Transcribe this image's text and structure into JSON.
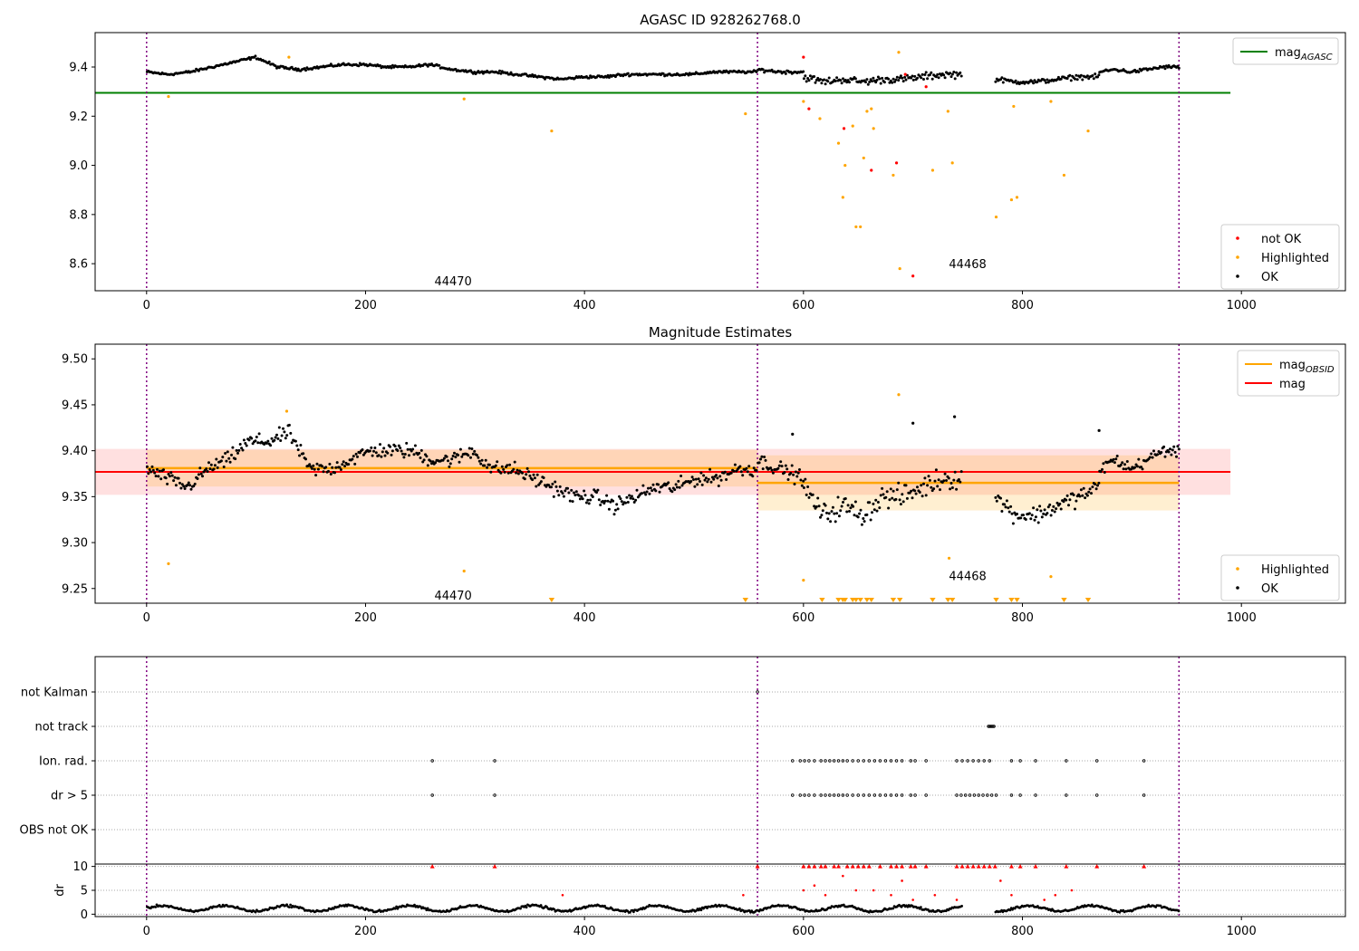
{
  "figure": {
    "title": "AGASC ID 928262768.0",
    "x_ticks": [
      "0",
      "200",
      "400",
      "600",
      "800",
      "1000"
    ]
  },
  "chart_data": [
    {
      "type": "scatter",
      "title": "AGASC ID 928262768.0",
      "xlim": [
        -47,
        1095
      ],
      "ylim": [
        8.49,
        9.54
      ],
      "y_ticks": [
        "8.6",
        "8.8",
        "9.0",
        "9.2",
        "9.4"
      ],
      "mag_agasc": 9.295,
      "obsid_boundaries": [
        0,
        558,
        943
      ],
      "obsid_labels": [
        {
          "text": "44470",
          "x": 280,
          "y": 8.53
        },
        {
          "text": "44468",
          "x": 750,
          "y": 8.6
        }
      ],
      "series": [
        {
          "name": "OK",
          "color": "#000000",
          "segments": [
            {
              "x0": 0,
              "x1": 558,
              "wave": [
                9.38,
                9.37,
                9.38,
                9.4,
                9.42,
                9.44,
                9.4,
                9.39,
                9.4,
                9.41,
                9.41,
                9.4,
                9.4,
                9.41,
                9.39,
                9.38,
                9.38,
                9.37,
                9.36,
                9.35,
                9.36,
                9.36,
                9.37,
                9.37,
                9.37,
                9.37,
                9.38,
                9.38,
                9.38
              ],
              "spread": 0.008
            },
            {
              "x0": 558,
              "x1": 600,
              "wave": [
                9.39,
                9.38,
                9.38
              ],
              "spread": 0.01
            },
            {
              "x0": 600,
              "x1": 745,
              "wave": [
                9.36,
                9.34,
                9.35,
                9.34,
                9.35,
                9.35,
                9.36,
                9.37,
                9.37
              ],
              "spread": 0.022
            },
            {
              "x0": 775,
              "x1": 870,
              "wave": [
                9.35,
                9.34,
                9.34,
                9.35,
                9.36,
                9.36
              ],
              "spread": 0.014
            },
            {
              "x0": 870,
              "x1": 943,
              "wave": [
                9.38,
                9.39,
                9.38,
                9.39,
                9.4,
                9.4
              ],
              "spread": 0.01
            }
          ]
        },
        {
          "name": "Highlighted",
          "color": "#ffa500",
          "points": [
            [
              20,
              9.28
            ],
            [
              290,
              9.27
            ],
            [
              370,
              9.14
            ],
            [
              130,
              9.44
            ],
            [
              547,
              9.21
            ],
            [
              600,
              9.26
            ],
            [
              615,
              9.19
            ],
            [
              632,
              9.09
            ],
            [
              636,
              8.87
            ],
            [
              638,
              9.0
            ],
            [
              645,
              9.16
            ],
            [
              648,
              8.75
            ],
            [
              652,
              8.75
            ],
            [
              655,
              9.03
            ],
            [
              658,
              9.22
            ],
            [
              662,
              9.23
            ],
            [
              664,
              9.15
            ],
            [
              682,
              8.96
            ],
            [
              687,
              9.46
            ],
            [
              688,
              8.58
            ],
            [
              718,
              8.98
            ],
            [
              732,
              9.22
            ],
            [
              736,
              9.01
            ],
            [
              776,
              8.79
            ],
            [
              790,
              8.86
            ],
            [
              795,
              8.87
            ],
            [
              792,
              9.24
            ],
            [
              826,
              9.26
            ],
            [
              838,
              8.96
            ],
            [
              860,
              9.14
            ]
          ]
        },
        {
          "name": "not OK",
          "color": "#ff0000",
          "points": [
            [
              600,
              9.44
            ],
            [
              605,
              9.23
            ],
            [
              637,
              9.15
            ],
            [
              662,
              8.98
            ],
            [
              685,
              9.01
            ],
            [
              700,
              8.55
            ],
            [
              712,
              9.32
            ],
            [
              693,
              9.37
            ]
          ]
        }
      ]
    },
    {
      "type": "scatter",
      "title": "Magnitude Estimates",
      "xlim": [
        -47,
        1095
      ],
      "ylim": [
        9.234,
        9.516
      ],
      "y_ticks": [
        "9.25",
        "9.30",
        "9.35",
        "9.40",
        "9.45",
        "9.50"
      ],
      "mag": 9.377,
      "mag_band": [
        9.352,
        9.402
      ],
      "mag_obsid": [
        {
          "x0": 0,
          "x1": 558,
          "value": 9.381,
          "band": [
            9.361,
            9.401
          ]
        },
        {
          "x0": 558,
          "x1": 943,
          "value": 9.365,
          "band": [
            9.335,
            9.395
          ]
        }
      ],
      "obsid_boundaries": [
        0,
        558,
        943
      ],
      "obsid_labels": [
        {
          "text": "44470",
          "x": 280,
          "y": 9.243
        },
        {
          "text": "44468",
          "x": 750,
          "y": 9.264
        }
      ],
      "series": [
        {
          "name": "OK",
          "color": "#000000",
          "segments": [
            {
              "x0": 0,
              "x1": 558,
              "wave": [
                9.38,
                9.37,
                9.36,
                9.38,
                9.39,
                9.41,
                9.41,
                9.42,
                9.38,
                9.38,
                9.39,
                9.4,
                9.4,
                9.4,
                9.39,
                9.39,
                9.4,
                9.38,
                9.38,
                9.37,
                9.36,
                9.35,
                9.35,
                9.34,
                9.35,
                9.36,
                9.36,
                9.37,
                9.37,
                9.38,
                9.38
              ],
              "spread": 0.012
            },
            {
              "x0": 558,
              "x1": 600,
              "wave": [
                9.39,
                9.38,
                9.37
              ],
              "spread": 0.012
            },
            {
              "x0": 600,
              "x1": 745,
              "wave": [
                9.36,
                9.33,
                9.34,
                9.33,
                9.35,
                9.35,
                9.36,
                9.37,
                9.37
              ],
              "spread": 0.018
            },
            {
              "x0": 775,
              "x1": 870,
              "wave": [
                9.35,
                9.33,
                9.33,
                9.34,
                9.35,
                9.36
              ],
              "spread": 0.014
            },
            {
              "x0": 870,
              "x1": 943,
              "wave": [
                9.38,
                9.39,
                9.38,
                9.39,
                9.4,
                9.4
              ],
              "spread": 0.01
            }
          ]
        },
        {
          "name": "Highlighted",
          "color": "#ffa500",
          "points": [
            [
              20,
              9.277
            ],
            [
              290,
              9.269
            ],
            [
              128,
              9.443
            ],
            [
              600,
              9.259
            ],
            [
              687,
              9.461
            ],
            [
              733,
              9.283
            ],
            [
              826,
              9.263
            ]
          ]
        },
        {
          "name": "Highlighted (below range)",
          "color": "#ffa500",
          "marker": "triangle-down",
          "points": [
            [
              370,
              9.234
            ],
            [
              547,
              9.234
            ],
            [
              617,
              9.234
            ],
            [
              632,
              9.234
            ],
            [
              636,
              9.234
            ],
            [
              638,
              9.234
            ],
            [
              645,
              9.234
            ],
            [
              648,
              9.234
            ],
            [
              652,
              9.234
            ],
            [
              658,
              9.234
            ],
            [
              662,
              9.234
            ],
            [
              682,
              9.234
            ],
            [
              688,
              9.234
            ],
            [
              718,
              9.234
            ],
            [
              732,
              9.234
            ],
            [
              736,
              9.234
            ],
            [
              776,
              9.234
            ],
            [
              790,
              9.234
            ],
            [
              795,
              9.234
            ],
            [
              838,
              9.234
            ],
            [
              860,
              9.234
            ]
          ]
        }
      ],
      "extra_ok_points": [
        [
          700,
          9.43
        ],
        [
          738,
          9.437
        ],
        [
          590,
          9.418
        ],
        [
          870,
          9.422
        ]
      ]
    },
    {
      "type": "scatter",
      "title": "",
      "xlim": [
        -47,
        1095
      ],
      "categories": [
        "not Kalman",
        "not track",
        "Ion. rad.",
        "dr > 5",
        "OBS not OK"
      ],
      "flags": {
        "not Kalman": [
          558
        ],
        "not track": [
          769,
          770,
          771,
          772,
          773,
          774
        ],
        "Ion. rad.": [
          261,
          318,
          590,
          597,
          601,
          605,
          610,
          616,
          620,
          624,
          628,
          632,
          636,
          640,
          645,
          650,
          655,
          660,
          665,
          670,
          675,
          680,
          685,
          690,
          698,
          702,
          712,
          740,
          745,
          750,
          755,
          760,
          765,
          770,
          790,
          798,
          812,
          840,
          868,
          911
        ],
        "dr > 5": [
          261,
          318,
          590,
          597,
          601,
          605,
          610,
          616,
          620,
          624,
          628,
          632,
          636,
          640,
          645,
          650,
          655,
          660,
          665,
          670,
          675,
          680,
          685,
          690,
          698,
          702,
          712,
          740,
          744,
          748,
          752,
          756,
          760,
          764,
          768,
          772,
          776,
          790,
          798,
          812,
          840,
          868,
          911
        ],
        "OBS not OK": []
      }
    },
    {
      "type": "scatter",
      "title": "",
      "ylabel": "dr",
      "xlim": [
        -47,
        1095
      ],
      "ylim": [
        -0.5,
        10.5
      ],
      "y_ticks": [
        "0",
        "5",
        "10"
      ],
      "clip_value": 10,
      "series": [
        {
          "name": "dr",
          "color": "#000000",
          "baseline": 1.2,
          "spread": 0.6
        },
        {
          "name": "dr large",
          "color": "#ff0000",
          "points": [
            [
              261,
              10
            ],
            [
              318,
              10
            ],
            [
              380,
              4
            ],
            [
              545,
              4
            ],
            [
              558,
              10
            ],
            [
              600,
              10
            ],
            [
              605,
              10
            ],
            [
              610,
              10
            ],
            [
              616,
              10
            ],
            [
              620,
              10
            ],
            [
              628,
              10
            ],
            [
              632,
              10
            ],
            [
              640,
              10
            ],
            [
              645,
              10
            ],
            [
              650,
              10
            ],
            [
              655,
              10
            ],
            [
              660,
              10
            ],
            [
              670,
              10
            ],
            [
              680,
              10
            ],
            [
              685,
              10
            ],
            [
              690,
              10
            ],
            [
              698,
              10
            ],
            [
              702,
              10
            ],
            [
              712,
              10
            ],
            [
              740,
              10
            ],
            [
              745,
              10
            ],
            [
              750,
              10
            ],
            [
              755,
              10
            ],
            [
              760,
              10
            ],
            [
              765,
              10
            ],
            [
              770,
              10
            ],
            [
              775,
              10
            ],
            [
              790,
              10
            ],
            [
              798,
              10
            ],
            [
              812,
              10
            ],
            [
              840,
              10
            ],
            [
              868,
              10
            ],
            [
              911,
              10
            ],
            [
              600,
              5
            ],
            [
              610,
              6
            ],
            [
              620,
              4
            ],
            [
              636,
              8
            ],
            [
              648,
              5
            ],
            [
              664,
              5
            ],
            [
              680,
              4
            ],
            [
              690,
              7
            ],
            [
              700,
              3
            ],
            [
              720,
              4
            ],
            [
              740,
              3
            ],
            [
              780,
              7
            ],
            [
              790,
              4
            ],
            [
              820,
              3
            ],
            [
              830,
              4
            ],
            [
              845,
              5
            ]
          ]
        }
      ]
    }
  ],
  "legends": {
    "panel1_top": [
      {
        "label": "mag",
        "sub": "AGASC",
        "color": "#008000"
      }
    ],
    "panel1_bottom": [
      {
        "label": "not OK",
        "color": "#ff0000"
      },
      {
        "label": "Highlighted",
        "color": "#ffa500"
      },
      {
        "label": "OK",
        "color": "#000000"
      }
    ],
    "panel2_top": [
      {
        "label": "mag",
        "sub": "OBSID",
        "color": "#ffa500"
      },
      {
        "label": "mag",
        "sub": "",
        "color": "#ff0000"
      }
    ],
    "panel2_bottom": [
      {
        "label": "Highlighted",
        "color": "#ffa500"
      },
      {
        "label": "OK",
        "color": "#000000"
      }
    ]
  }
}
